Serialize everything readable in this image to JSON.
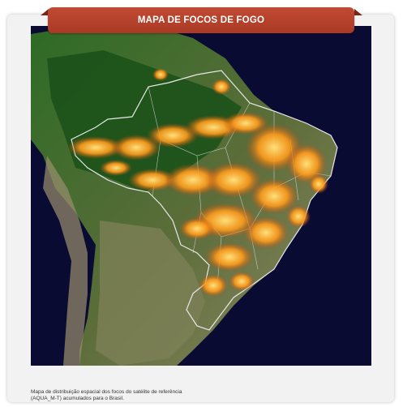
{
  "header": {
    "title": "MAPA DE FOCOS DE FOGO"
  },
  "caption": {
    "line1": "Mapa de distribuição espacial dos focos do satélite de referência",
    "line2": "(AQUA_M-T) acumulados para o Brasil."
  },
  "colors": {
    "banner": "#b9432d",
    "ocean": "#0a0b33",
    "forest": "#1f5b1c",
    "savanna": "#8a8a5a",
    "fire": "#ff9a1a",
    "border": "#e8e8e8"
  }
}
